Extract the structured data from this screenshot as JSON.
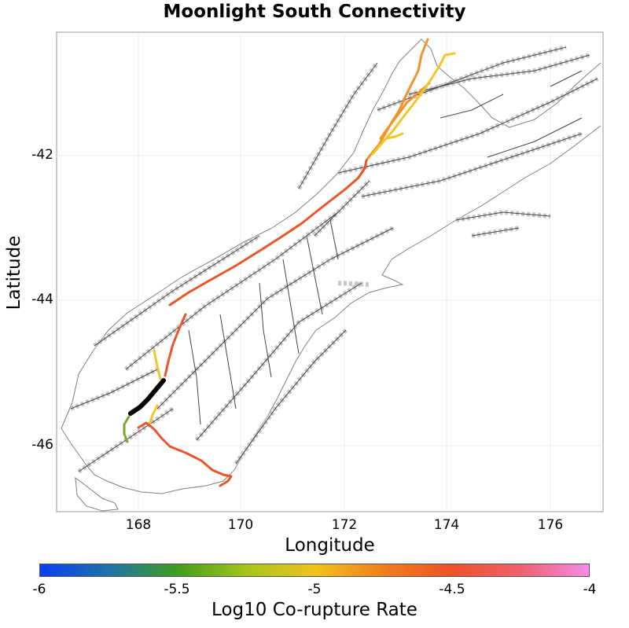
{
  "title": "Moonlight South Connectivity",
  "x_axis": {
    "label": "Longitude",
    "ticks": [
      "168",
      "170",
      "172",
      "174",
      "176"
    ]
  },
  "y_axis": {
    "label": "Latitude",
    "ticks": [
      "-42",
      "-44",
      "-46"
    ]
  },
  "colorbar": {
    "label": "Log10 Co-rupture Rate",
    "ticks": [
      "-6",
      "-5.5",
      "-5",
      "-4.5",
      "-4"
    ],
    "range": [
      -6,
      -4
    ],
    "colors": [
      "#0b3cf5",
      "#1c74a8",
      "#3f9e1c",
      "#a5c41a",
      "#f2c21c",
      "#f07f1a",
      "#ee5226",
      "#f06070",
      "#f48be6"
    ]
  },
  "map": {
    "axis_extent": {
      "lon_range": [
        166.5,
        176.8
      ],
      "lat_range": [
        -46.9,
        -40.3
      ]
    },
    "highlighted_fault": {
      "name": "Moonlight South",
      "color": "#000000"
    },
    "corupture_colors": {
      "orange_red": "#e8572a",
      "orange": "#f0932a",
      "yellow": "#efc72c",
      "green": "#7aa92a",
      "black": "#000000"
    }
  }
}
